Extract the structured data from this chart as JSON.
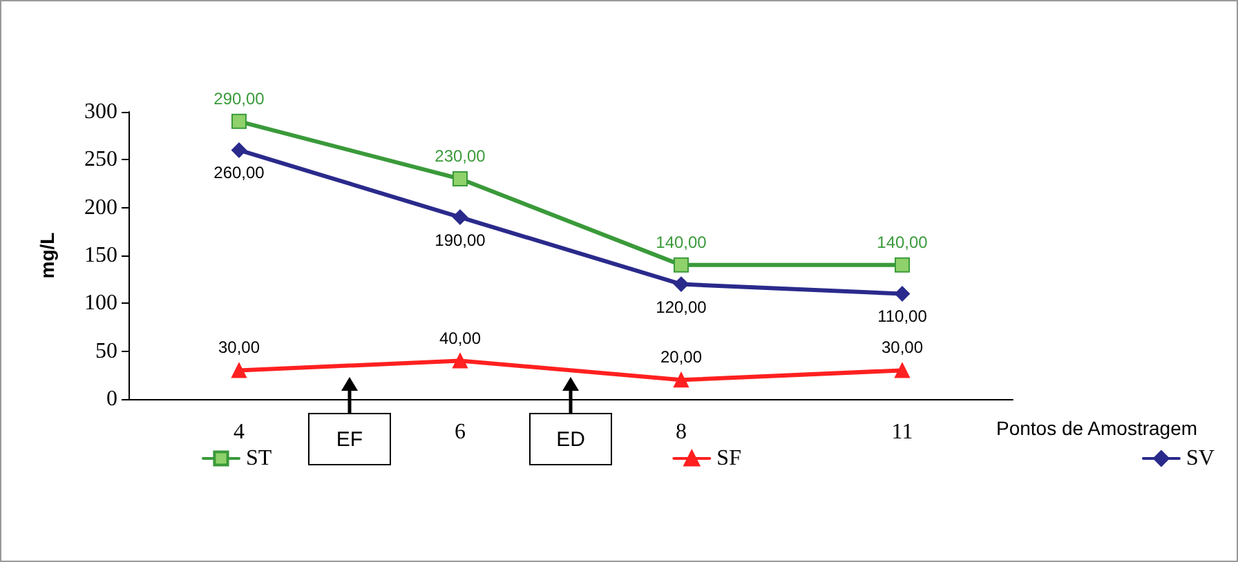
{
  "chart_data": {
    "type": "line",
    "xlabel": "Pontos de Amostragem",
    "ylabel": "mg/L",
    "categories": [
      "4",
      "6",
      "8",
      "11"
    ],
    "series": [
      {
        "name": "ST",
        "color": "#3a9a3a",
        "values": [
          290,
          230,
          140,
          140
        ],
        "value_labels": [
          "290,00",
          "230,00",
          "140,00",
          "140,00"
        ],
        "marker": "square"
      },
      {
        "name": "SF",
        "color": "#ff2020",
        "values": [
          30,
          40,
          20,
          30
        ],
        "value_labels": [
          "30,00",
          "40,00",
          "20,00",
          "30,00"
        ],
        "marker": "triangle"
      },
      {
        "name": "SV",
        "color": "#2a2a8c",
        "values": [
          260,
          190,
          120,
          110
        ],
        "value_labels": [
          "260,00",
          "190,00",
          "120,00",
          "110,00"
        ],
        "marker": "diamond"
      }
    ],
    "ylim": [
      0,
      300
    ],
    "yticks": [
      0,
      50,
      100,
      150,
      200,
      250,
      300
    ],
    "grid": false,
    "legend": "bottom",
    "line_style": "solid",
    "annotations": [
      "EF",
      "ED"
    ]
  }
}
